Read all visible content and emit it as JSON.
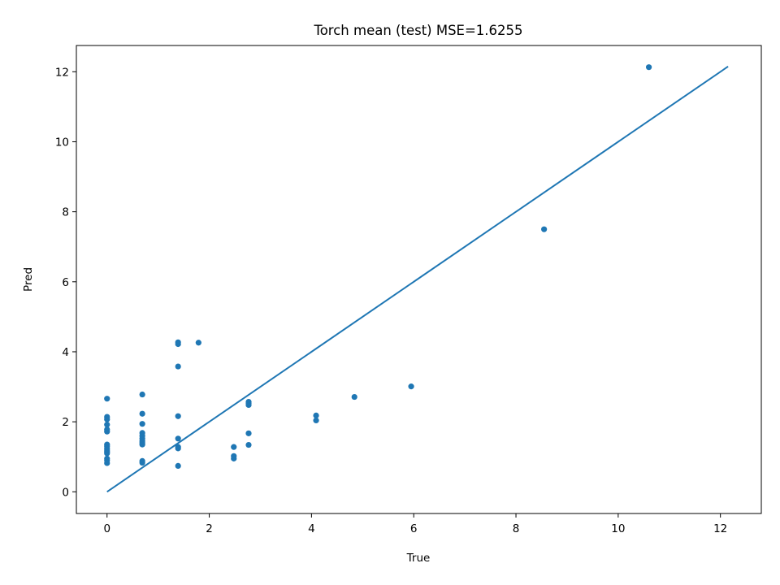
{
  "chart_data": {
    "type": "scatter",
    "title": "Torch mean (test) MSE=1.6255",
    "xlabel": "True",
    "ylabel": "Pred",
    "xlim": [
      -0.6,
      12.8
    ],
    "ylim": [
      -0.62,
      12.75
    ],
    "xticks": [
      0,
      2,
      4,
      6,
      8,
      10,
      12
    ],
    "yticks": [
      0,
      2,
      4,
      6,
      8,
      10,
      12
    ],
    "grid": false,
    "colors": {
      "points": "#1f77b4",
      "line": "#1f77b4",
      "axes": "#000000"
    },
    "reference_line": {
      "x": [
        0,
        12.15
      ],
      "y": [
        0,
        12.15
      ]
    },
    "points": [
      [
        0,
        2.66
      ],
      [
        0,
        2.14
      ],
      [
        0,
        2.07
      ],
      [
        0,
        1.92
      ],
      [
        0,
        1.78
      ],
      [
        0,
        1.72
      ],
      [
        0,
        1.35
      ],
      [
        0,
        1.3
      ],
      [
        0,
        1.24
      ],
      [
        0,
        1.19
      ],
      [
        0,
        1.14
      ],
      [
        0,
        1.1
      ],
      [
        0,
        0.95
      ],
      [
        0,
        0.9
      ],
      [
        0,
        0.82
      ],
      [
        0.69,
        2.78
      ],
      [
        0.69,
        2.23
      ],
      [
        0.69,
        1.94
      ],
      [
        0.69,
        1.68
      ],
      [
        0.69,
        1.6
      ],
      [
        0.69,
        1.52
      ],
      [
        0.69,
        1.45
      ],
      [
        0.69,
        1.4
      ],
      [
        0.69,
        1.35
      ],
      [
        0.69,
        0.88
      ],
      [
        0.69,
        0.83
      ],
      [
        1.39,
        4.27
      ],
      [
        1.39,
        4.22
      ],
      [
        1.39,
        3.58
      ],
      [
        1.39,
        2.16
      ],
      [
        1.39,
        1.52
      ],
      [
        1.39,
        1.28
      ],
      [
        1.39,
        1.24
      ],
      [
        1.39,
        0.74
      ],
      [
        1.79,
        4.26
      ],
      [
        2.48,
        1.28
      ],
      [
        2.48,
        1.02
      ],
      [
        2.48,
        0.95
      ],
      [
        2.77,
        2.57
      ],
      [
        2.77,
        2.53
      ],
      [
        2.77,
        2.48
      ],
      [
        2.77,
        1.67
      ],
      [
        2.77,
        1.34
      ],
      [
        4.09,
        2.18
      ],
      [
        4.09,
        2.04
      ],
      [
        4.84,
        2.71
      ],
      [
        5.95,
        3.01
      ],
      [
        8.55,
        7.5
      ],
      [
        10.6,
        12.13
      ]
    ]
  }
}
